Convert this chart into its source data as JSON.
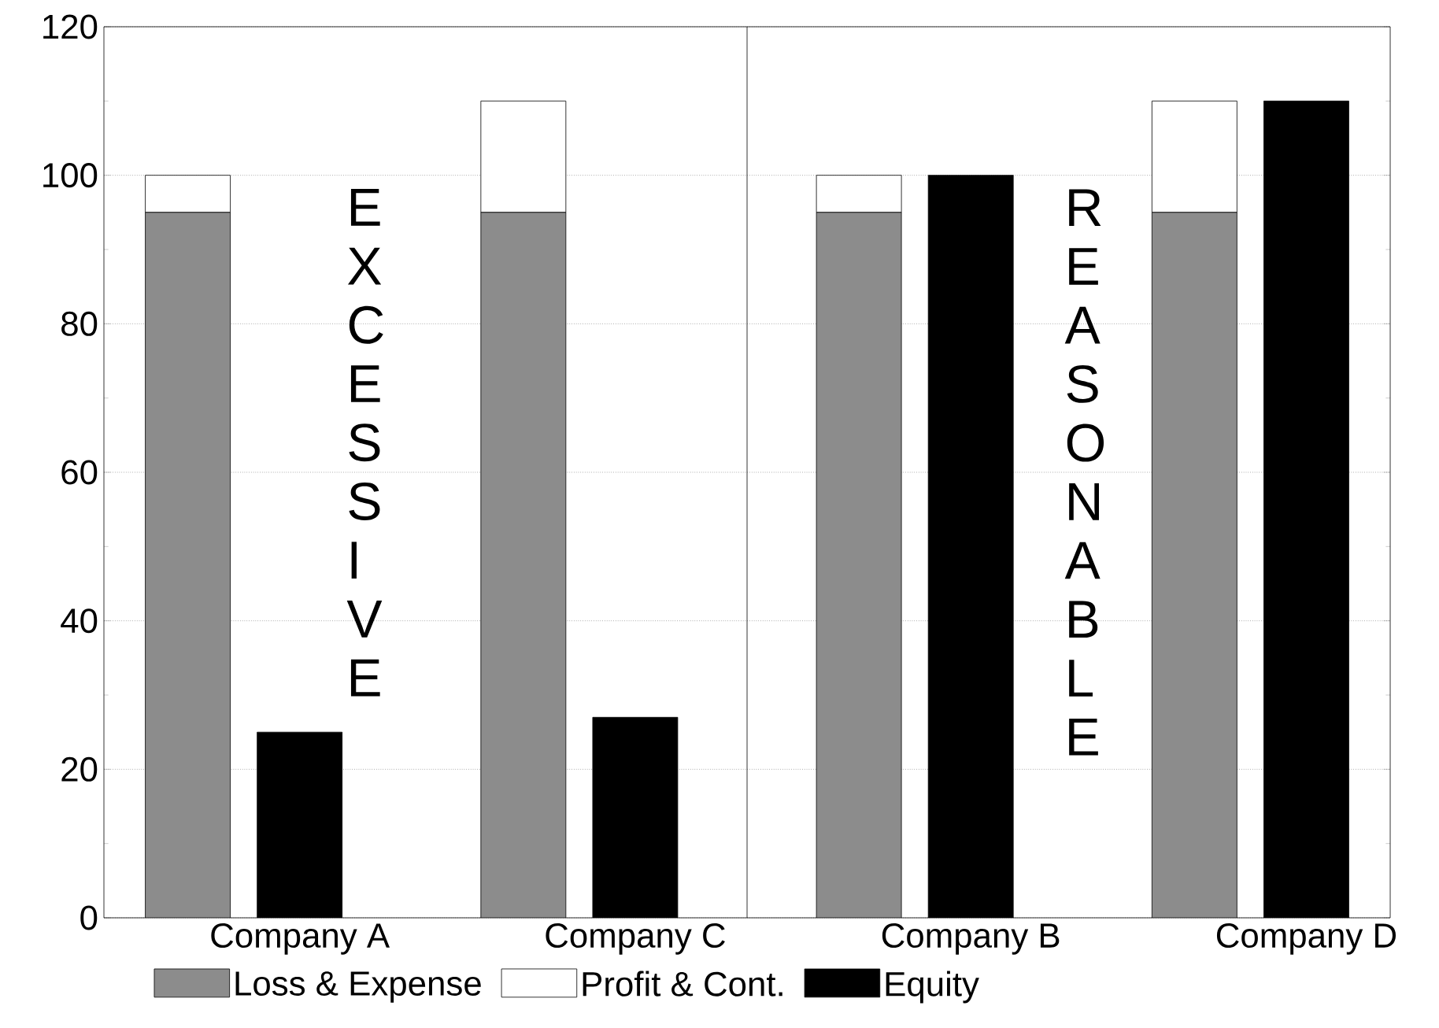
{
  "chart_data": {
    "type": "bar",
    "stacked": true,
    "categories": [
      null,
      "Company A",
      null,
      null,
      "Company C",
      null,
      null,
      "Company B",
      null,
      null,
      "Company D"
    ],
    "series": [
      {
        "name": "Loss & Expense",
        "color": "#8c8c8c",
        "values": [
          95,
          null,
          null,
          95,
          null,
          null,
          95,
          null,
          null,
          95,
          null
        ]
      },
      {
        "name": "Profit & Cont.",
        "color": "#ffffff",
        "values": [
          5,
          null,
          null,
          15,
          null,
          null,
          5,
          null,
          null,
          15,
          null
        ]
      },
      {
        "name": "Equity",
        "color": "#000000",
        "values": [
          null,
          25,
          null,
          null,
          27,
          null,
          null,
          100,
          null,
          null,
          110
        ]
      }
    ],
    "ylim": [
      0,
      120
    ],
    "yticks": [
      0,
      20,
      40,
      60,
      80,
      100,
      120
    ],
    "grid": "y",
    "legend": "bottom",
    "annotations": [
      "EXCESSIVE",
      "REASONABLE"
    ]
  }
}
